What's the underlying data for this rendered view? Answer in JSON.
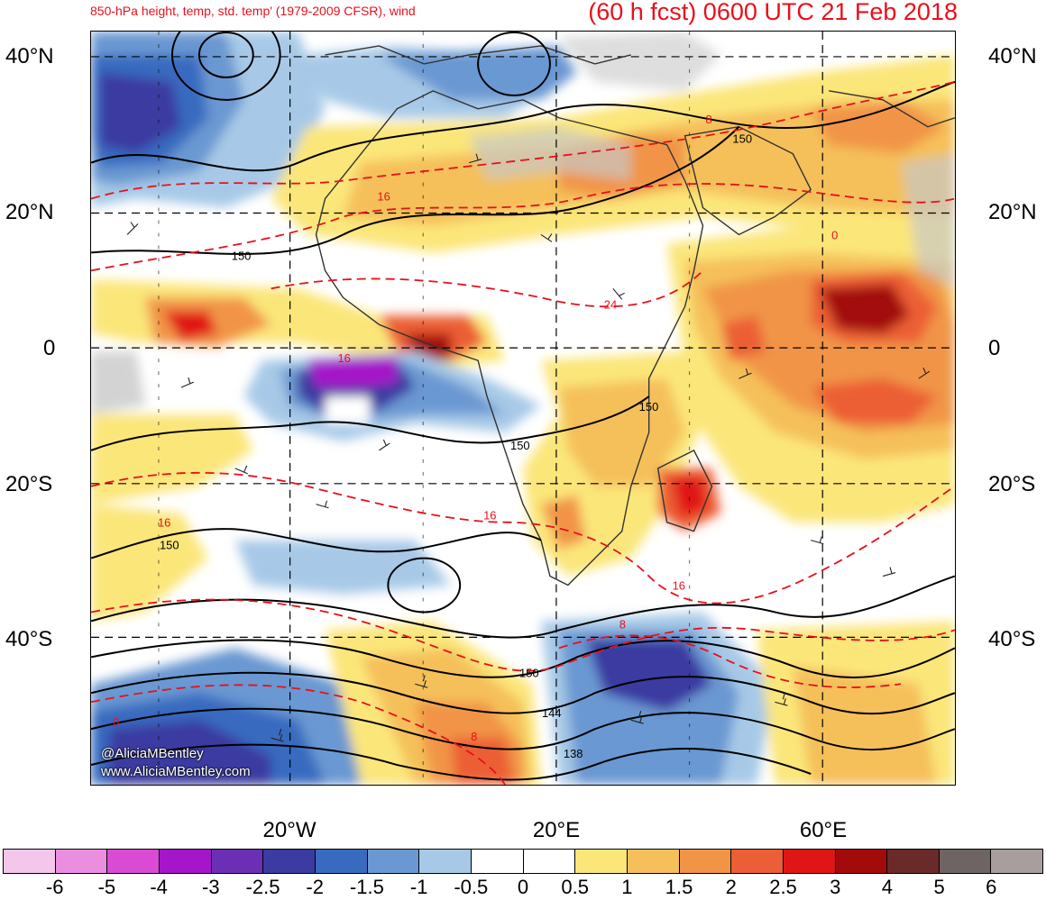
{
  "header": {
    "left_title": "850-hPa height, temp, std. temp' (1979-2009 CFSR), wind",
    "right_title": "(60 h fcst) 0600 UTC 21 Feb 2018"
  },
  "map": {
    "lat_labels_left": [
      "40°N",
      "20°N",
      "0",
      "20°S",
      "40°S"
    ],
    "lat_labels_right": [
      "40°N",
      "20°N",
      "0",
      "20°S",
      "40°S"
    ],
    "lon_labels": [
      "20°W",
      "20°E",
      "60°E"
    ],
    "height_contour_labels": [
      "150",
      "150",
      "150",
      "150",
      "150",
      "150",
      "144",
      "138"
    ],
    "temp_contour_labels": [
      "8",
      "16",
      "24",
      "16",
      "16",
      "16",
      "16",
      "8",
      "0",
      "8",
      "0"
    ],
    "watermark": [
      "@AliciaMBentley",
      "www.AliciaMBentley.com"
    ],
    "colors": {
      "title": "#e8101c",
      "height_contour": "#000000",
      "temp_contour": "#e8101c",
      "land_masked": "#c8c8c8"
    }
  },
  "colorbar": {
    "labels": [
      "-6",
      "-5",
      "-4",
      "-3",
      "-2.5",
      "-2",
      "-1.5",
      "-1",
      "-0.5",
      "0",
      "0.5",
      "1",
      "1.5",
      "2",
      "2.5",
      "3",
      "4",
      "5",
      "6"
    ],
    "colors": [
      "#f5c6ec",
      "#ea8ee0",
      "#d94bd4",
      "#a515c9",
      "#6a2fb4",
      "#3b3ba1",
      "#386bbf",
      "#6b98d2",
      "#a7c9e7",
      "#ffffff",
      "#ffffff",
      "#fbe67a",
      "#f5c05a",
      "#f19446",
      "#ec5e35",
      "#e01616",
      "#a30b0b",
      "#6b2a2a",
      "#6e6464",
      "#a89e9e"
    ]
  }
}
